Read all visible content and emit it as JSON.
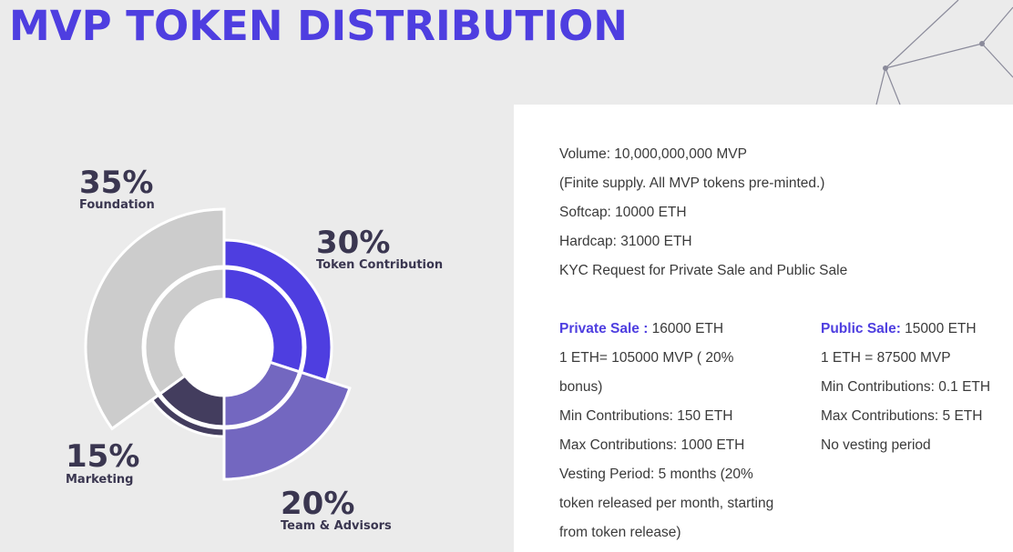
{
  "title": "MVP TOKEN DISTRIBUTION",
  "chart_data": {
    "type": "pie",
    "style": "nested-donut",
    "slices": [
      {
        "label": "Token Contribution",
        "percent": 30,
        "display": "30%",
        "color": "#4e3ee0"
      },
      {
        "label": "Team & Advisors",
        "percent": 20,
        "display": "20%",
        "color": "#7367c0"
      },
      {
        "label": "Marketing",
        "percent": 15,
        "display": "15%",
        "color": "#433d5e"
      },
      {
        "label": "Foundation",
        "percent": 35,
        "display": "35%",
        "color": "#cccccc"
      }
    ]
  },
  "info": {
    "lines": [
      "Volume: 10,000,000,000 MVP",
      "(Finite supply. All MVP tokens pre-minted.)",
      "Softcap: 10000 ETH",
      "Hardcap: 31000 ETH",
      "KYC Request for Private Sale and Public Sale"
    ],
    "private_sale": {
      "label": "Private Sale :",
      "value": " 16000 ETH",
      "lines": [
        "1 ETH= 105000 MVP ( 20%",
        "bonus)",
        "Min Contributions: 150 ETH",
        "Max Contributions: 1000 ETH",
        "Vesting Period: 5 months (20%",
        "token released per month, starting",
        "from token release)"
      ]
    },
    "public_sale": {
      "label": "Public Sale:",
      "value": " 15000 ETH",
      "lines": [
        "1 ETH = 87500 MVP",
        "Min Contributions: 0.1 ETH",
        "Max Contributions: 5 ETH",
        "No vesting period"
      ]
    }
  }
}
